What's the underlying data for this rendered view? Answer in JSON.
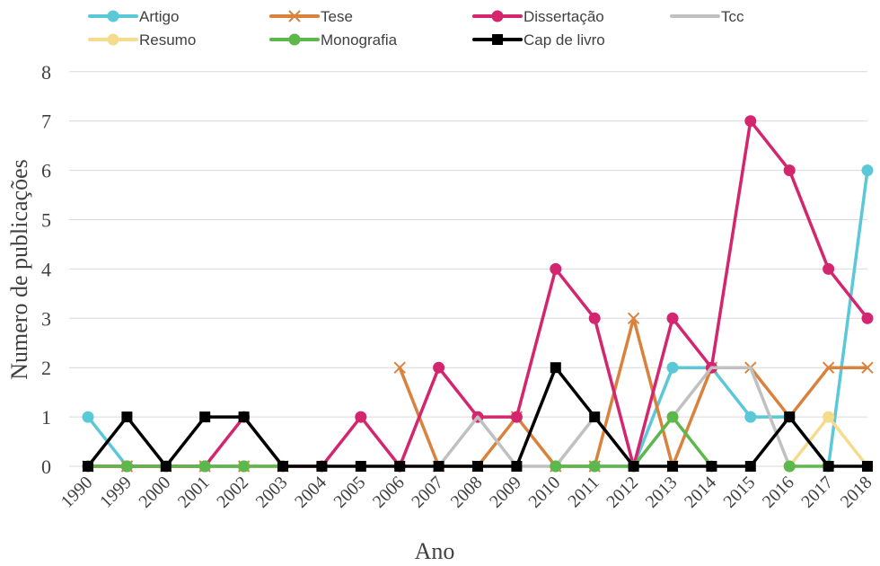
{
  "chart_data": {
    "type": "line",
    "title": "",
    "xlabel": "Ano",
    "ylabel": "Numero de publicações",
    "ylim": [
      0,
      8
    ],
    "yticks": [
      "0",
      "1",
      "2",
      "3",
      "4",
      "5",
      "6",
      "7",
      "8"
    ],
    "grid": "horizontal",
    "legend_position": "top",
    "categories": [
      "1990",
      "1999",
      "2000",
      "2001",
      "2002",
      "2003",
      "2004",
      "2005",
      "2006",
      "2007",
      "2008",
      "2009",
      "2010",
      "2011",
      "2012",
      "2013",
      "2014",
      "2015",
      "2016",
      "2017",
      "2018"
    ],
    "series": [
      {
        "name": "Artigo",
        "color": "#5bc8d8",
        "marker": "circle",
        "values": [
          1,
          0,
          0,
          0,
          0,
          null,
          null,
          null,
          null,
          null,
          null,
          null,
          0,
          0,
          0,
          2,
          2,
          1,
          1,
          0,
          6
        ]
      },
      {
        "name": "Tese",
        "color": "#d9823e",
        "marker": "x",
        "values": [
          0,
          0,
          0,
          0,
          0,
          0,
          null,
          null,
          2,
          0,
          0,
          1,
          0,
          0,
          3,
          0,
          2,
          2,
          1,
          2,
          2
        ]
      },
      {
        "name": "Dissertação",
        "color": "#d3266e",
        "marker": "circle",
        "values": [
          0,
          0,
          0,
          0,
          1,
          0,
          0,
          1,
          0,
          2,
          1,
          1,
          4,
          3,
          0,
          3,
          2,
          7,
          6,
          4,
          3
        ]
      },
      {
        "name": "Tcc",
        "color": "#c0c0c0",
        "marker": "none",
        "values": [
          null,
          null,
          null,
          null,
          null,
          null,
          null,
          null,
          null,
          0,
          1,
          0,
          0,
          1,
          0,
          1,
          2,
          2,
          0,
          null,
          null
        ]
      },
      {
        "name": "Resumo",
        "color": "#f5dc8c",
        "marker": "circle",
        "values": [
          null,
          null,
          null,
          null,
          null,
          null,
          null,
          null,
          null,
          null,
          null,
          null,
          null,
          null,
          null,
          null,
          null,
          null,
          0,
          1,
          0
        ]
      },
      {
        "name": "Monografia",
        "color": "#5cb84a",
        "marker": "circle",
        "values": [
          0,
          0,
          0,
          0,
          0,
          0,
          null,
          null,
          null,
          null,
          null,
          null,
          0,
          0,
          0,
          1,
          0,
          null,
          0,
          0,
          null
        ]
      },
      {
        "name": "Cap de livro",
        "color": "#000000",
        "marker": "square",
        "values": [
          0,
          1,
          0,
          1,
          1,
          0,
          0,
          0,
          0,
          0,
          0,
          0,
          2,
          1,
          0,
          0,
          0,
          0,
          1,
          0,
          0
        ]
      }
    ]
  }
}
